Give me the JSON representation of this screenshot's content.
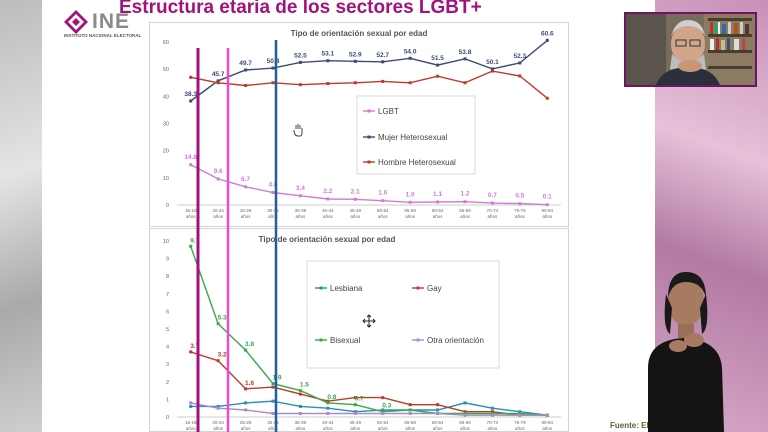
{
  "slide": {
    "logo_text": "INE",
    "logo_subtitle": "INSTITUTO NACIONAL ELECTORAL",
    "title": "Estructura etaria de los sectores LGBT+",
    "source": "Fuente: Elaborado"
  },
  "colors": {
    "title": "#a3127c",
    "accent_magenta": "#a3127c",
    "accent_pink": "#e64fd2",
    "accent_blue": "#1f5f9a"
  },
  "icons": [
    "ine-logo-icon",
    "cursor-hand-icon",
    "cursor-move-icon"
  ],
  "chart_data": [
    {
      "type": "line",
      "title": "Tipo de orientación sexual por edad",
      "categories": [
        "15-19 años",
        "20-24 años",
        "25-29 años",
        "30-34 años",
        "35-39 años",
        "40-44 años",
        "45-49 años",
        "50-54 años",
        "55-59 años",
        "60-64 años",
        "65-69 años",
        "70-74 años",
        "75-79 años",
        "80-84 años"
      ],
      "ylim": [
        0,
        60
      ],
      "yticks": [
        0,
        10,
        20,
        30,
        40,
        50,
        60
      ],
      "grid": false,
      "legend_position": "center",
      "series": [
        {
          "name": "LGBT",
          "color": "#d27bd6",
          "values": [
            14.8,
            9.6,
            6.7,
            4.6,
            3.4,
            2.2,
            2.1,
            1.6,
            1.0,
            1.1,
            1.2,
            0.7,
            0.5,
            0.1
          ],
          "labels": true
        },
        {
          "name": "Mujer Heterosexual",
          "color": "#3c4a78",
          "values": [
            38.3,
            45.7,
            49.7,
            50.4,
            52.5,
            53.1,
            52.9,
            52.7,
            54.0,
            51.5,
            53.8,
            50.1,
            52.3,
            60.6
          ],
          "labels": true
        },
        {
          "name": "Hombre Heterosexual",
          "color": "#c0392b",
          "values": [
            47,
            45,
            44,
            45,
            44.3,
            44.7,
            45,
            45.5,
            45,
            47.4,
            45,
            49.3,
            47.5,
            39.3
          ],
          "labels": false
        }
      ]
    },
    {
      "type": "line",
      "title": "Tipo de orientación sexual por edad",
      "categories": [
        "15-19 años",
        "20-24 años",
        "25-29 años",
        "30-34 años",
        "35-39 años",
        "40-44 años",
        "45-49 años",
        "50-54 años",
        "55-59 años",
        "60-64 años",
        "65-69 años",
        "70-74 años",
        "75-79 años",
        "80-84 años"
      ],
      "ylim": [
        0,
        10
      ],
      "yticks": [
        0,
        1,
        2,
        3,
        4,
        5,
        6,
        7,
        8,
        9,
        10
      ],
      "grid": false,
      "legend_position": "center",
      "series": [
        {
          "name": "Lesbiana",
          "color": "#2a8fb6",
          "values": [
            0.6,
            0.6,
            0.8,
            0.9,
            0.6,
            0.5,
            0.3,
            0.4,
            0.4,
            0.4,
            0.8,
            0.5,
            0.3,
            0.1
          ],
          "labels": false
        },
        {
          "name": "Gay",
          "color": "#c0392b",
          "values": [
            3.7,
            3.2,
            1.6,
            1.7,
            1.3,
            0.9,
            1.1,
            1.1,
            0.7,
            0.7,
            0.3,
            0.3,
            0.1,
            0.1
          ],
          "labels": [
            3.7,
            3.2,
            1.6,
            null,
            null,
            null,
            null,
            null,
            null,
            null,
            null,
            null,
            null,
            null
          ]
        },
        {
          "name": "Bisexual",
          "color": "#3ba84a",
          "values": [
            9.7,
            5.3,
            3.8,
            1.9,
            1.5,
            0.8,
            0.7,
            0.3,
            0.4,
            0.2,
            0.2,
            0.2,
            0.2,
            0.1
          ],
          "labels": [
            9.7,
            5.3,
            3.8,
            1.9,
            1.5,
            0.8,
            0.7,
            0.3,
            null,
            null,
            null,
            null,
            null,
            null
          ]
        },
        {
          "name": "Otra orientación",
          "color": "#a78cc9",
          "values": [
            0.8,
            0.5,
            0.4,
            0.2,
            0.2,
            0.2,
            0.2,
            0.2,
            0.2,
            0.2,
            0.1,
            0.1,
            0.1,
            0.1
          ],
          "labels": false
        }
      ]
    }
  ]
}
